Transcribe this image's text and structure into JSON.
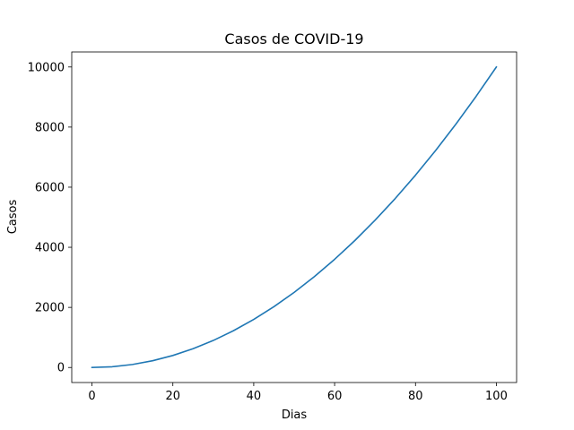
{
  "chart_data": {
    "type": "line",
    "title": "Casos de COVID-19",
    "xlabel": "Dias",
    "ylabel": "Casos",
    "xlim": [
      -5,
      105
    ],
    "ylim": [
      -500,
      10500
    ],
    "xticks": [
      0,
      20,
      40,
      60,
      80,
      100
    ],
    "xtick_labels": [
      "0",
      "20",
      "40",
      "60",
      "80",
      "100"
    ],
    "yticks": [
      0,
      2000,
      4000,
      6000,
      8000,
      10000
    ],
    "ytick_labels": [
      "0",
      "2000",
      "4000",
      "6000",
      "8000",
      "10000"
    ],
    "grid": false,
    "legend": "none",
    "series": [
      {
        "color": "#1f77b4",
        "x": [
          0,
          5,
          10,
          15,
          20,
          25,
          30,
          35,
          40,
          45,
          50,
          55,
          60,
          65,
          70,
          75,
          80,
          85,
          90,
          95,
          100
        ],
        "y": [
          0,
          25,
          100,
          225,
          400,
          625,
          900,
          1225,
          1600,
          2025,
          2500,
          3025,
          3600,
          4225,
          4900,
          5625,
          6400,
          7225,
          8100,
          9025,
          10000
        ]
      }
    ]
  }
}
